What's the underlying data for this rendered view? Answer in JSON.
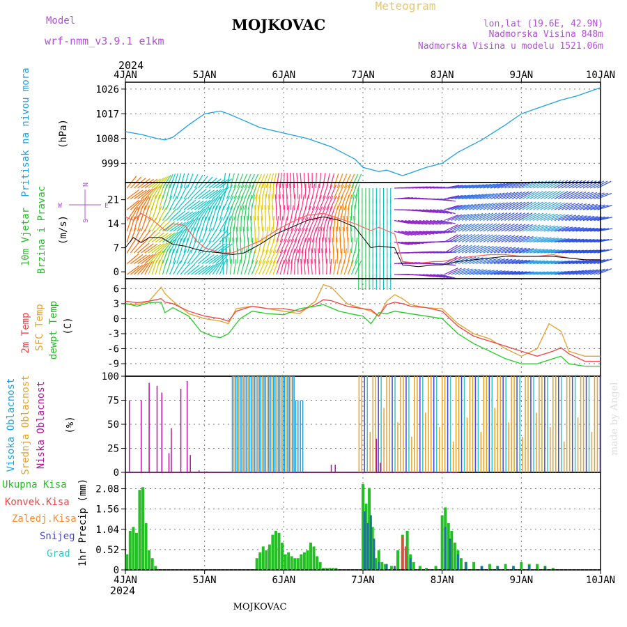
{
  "header": {
    "model_label": "Model",
    "model_value": "wrf-nmm_v3.9.1  e1km",
    "station": "MOJKOVAC",
    "product": "Meteogram",
    "lonlat": "lon,lat (19.6E, 42.9N)",
    "altitude": "Nadmorska Visina 848m",
    "model_altitude": "Nadmorska Visina u modelu 1521.06m",
    "year": "2024",
    "footer_station": "MOJKOVAC",
    "watermark": "made by Angel"
  },
  "colors": {
    "pressure": "#1ea0e6",
    "temp2m": "#ee4444",
    "sfc": "#e6a028",
    "dew": "#22cc22",
    "high_cloud": "#1ea0e6",
    "mid_cloud": "#e6a028",
    "low_cloud": "#b4149c",
    "total_precip": "#22c022",
    "conv_precip": "#ee4444",
    "frozen_precip": "#ff8c28",
    "snow": "#4646dc",
    "graupel": "#32c8c8",
    "model_text": "#b450dc",
    "meteogram_text": "#e6c870"
  },
  "chart_data": [
    {
      "type": "line",
      "panel": "pressure",
      "ylabel": "(hPa)",
      "side_labels": [
        "Pritisak na nivou mora"
      ],
      "x": [
        "4JAN",
        "5JAN",
        "6JAN",
        "7JAN",
        "8JAN",
        "9JAN",
        "10JAN"
      ],
      "yticks": [
        999,
        1008,
        1017,
        1026
      ],
      "ylim": [
        992,
        1028.5
      ],
      "series": [
        {
          "key": "slp",
          "x": [
            0,
            0.2,
            0.4,
            0.5,
            0.6,
            0.8,
            1.0,
            1.2,
            1.3,
            1.5,
            1.7,
            2.0,
            2.3,
            2.6,
            2.9,
            3.0,
            3.2,
            3.3,
            3.4,
            3.5,
            3.6,
            3.8,
            4.0,
            4.2,
            4.5,
            4.8,
            5.0,
            5.3,
            5.5,
            5.7,
            5.9,
            6.0
          ],
          "values": [
            1010.5,
            1009.5,
            1008,
            1007.5,
            1008.5,
            1013,
            1017,
            1018,
            1017,
            1014.5,
            1012,
            1010,
            1008,
            1005,
            1000.5,
            997.5,
            996,
            996.5,
            995.5,
            994.5,
            995.5,
            997.5,
            999,
            1003,
            1007.5,
            1013,
            1017,
            1020,
            1022,
            1023.5,
            1025.5,
            1026.5
          ]
        }
      ]
    },
    {
      "type": "line",
      "panel": "wind",
      "ylabel": "(m/s)",
      "side_labels": [
        "10m Vjetar",
        "Brzina i Pravac"
      ],
      "compass": {
        "n": "N",
        "s": "S",
        "e": "E",
        "w": "W"
      },
      "yticks": [
        0,
        7,
        14,
        21
      ],
      "ylim": [
        -2,
        26
      ],
      "series": [
        {
          "key": "mean_speed",
          "x": [
            0,
            0.1,
            0.2,
            0.3,
            0.45,
            0.6,
            0.75,
            0.9,
            1.0,
            1.2,
            1.35,
            1.5,
            1.7,
            1.9,
            2.1,
            2.3,
            2.5,
            2.7,
            2.9,
            3.0,
            3.1,
            3.2,
            3.4,
            3.5,
            3.7,
            3.9,
            4.0,
            4.2,
            4.4,
            4.6,
            4.8,
            5.0,
            5.2,
            5.4,
            5.6,
            5.8,
            6.0
          ],
          "values": [
            7,
            10,
            8.5,
            10,
            10,
            8,
            7.5,
            6.5,
            6,
            5.5,
            5,
            5.5,
            8,
            11,
            13,
            15,
            16,
            15,
            13,
            10,
            7,
            7.5,
            7,
            2,
            1.5,
            2,
            2,
            3,
            3.5,
            4,
            4.5,
            4.5,
            4.5,
            4.5,
            4,
            3.5,
            3.5
          ]
        },
        {
          "key": "gust",
          "x": [
            0,
            0.1,
            0.2,
            0.35,
            0.5,
            0.6,
            0.75,
            0.9,
            1.0,
            1.2,
            1.35,
            1.5,
            1.7,
            1.9,
            2.1,
            2.3,
            2.5,
            2.7,
            2.9,
            3.0,
            3.1,
            3.2,
            3.4,
            3.5,
            3.7,
            3.9,
            4.0,
            4.2,
            4.4,
            4.6,
            4.8,
            5.0,
            5.2,
            5.4,
            5.6,
            5.8,
            6.0
          ],
          "values": [
            16,
            15,
            17,
            15,
            12,
            14,
            13.5,
            9,
            7,
            5.5,
            5.5,
            7,
            9,
            12,
            14.5,
            16.5,
            17,
            15.5,
            14,
            13,
            12,
            13,
            11,
            3,
            2.5,
            3,
            3,
            4,
            4.5,
            5,
            5,
            4.5,
            4.5,
            5,
            4,
            3.5,
            3.5
          ]
        }
      ]
    },
    {
      "type": "line",
      "panel": "temperature",
      "ylabel": "(C)",
      "side_labels": [
        "2m Temp",
        "SFC Temp",
        "dewpt Temp"
      ],
      "yticks": [
        6,
        3,
        0,
        -3,
        -6,
        -9
      ],
      "ylim": [
        -11.5,
        8
      ],
      "series": [
        {
          "key": "t2m",
          "x": [
            0,
            0.15,
            0.3,
            0.45,
            0.5,
            0.6,
            0.8,
            1.0,
            1.2,
            1.3,
            1.4,
            1.6,
            1.8,
            2.0,
            2.2,
            2.4,
            2.5,
            2.6,
            2.8,
            3.0,
            3.1,
            3.2,
            3.3,
            3.4,
            3.5,
            3.6,
            3.8,
            4.0,
            4.2,
            4.4,
            4.6,
            4.8,
            5.0,
            5.2,
            5.4,
            5.5,
            5.6,
            5.8,
            6.0
          ],
          "values": [
            3.5,
            3.2,
            3.5,
            4,
            3.3,
            3,
            1.5,
            0.5,
            0,
            -0.5,
            1.5,
            2.5,
            2,
            2,
            1.5,
            2.8,
            3.8,
            3.6,
            2.5,
            2,
            1.8,
            0.5,
            2.8,
            3.3,
            3,
            2.5,
            2.2,
            1.5,
            -1.5,
            -3.5,
            -4.5,
            -5.5,
            -6.5,
            -7.5,
            -6.5,
            -5.8,
            -7,
            -8.5,
            -8.5
          ]
        },
        {
          "key": "sfc",
          "x": [
            0,
            0.15,
            0.3,
            0.45,
            0.5,
            0.6,
            0.8,
            1.0,
            1.2,
            1.3,
            1.4,
            1.6,
            1.8,
            2.0,
            2.2,
            2.4,
            2.5,
            2.6,
            2.8,
            3.0,
            3.1,
            3.2,
            3.3,
            3.4,
            3.5,
            3.6,
            3.8,
            4.0,
            4.2,
            4.4,
            4.6,
            4.8,
            5.0,
            5.2,
            5.35,
            5.5,
            5.6,
            5.8,
            6.0
          ],
          "values": [
            3,
            2.8,
            3.5,
            6.3,
            5,
            3.5,
            1,
            0,
            -0.5,
            -1,
            2,
            2.5,
            2,
            1.5,
            1,
            3.5,
            6.8,
            6.3,
            3,
            2,
            1.5,
            0.5,
            3.5,
            4.8,
            4,
            2.8,
            2.2,
            2,
            -1,
            -3,
            -4,
            -6,
            -7.5,
            -6,
            -1,
            -2.5,
            -6.5,
            -7.5,
            -7.5
          ]
        },
        {
          "key": "dew",
          "x": [
            0,
            0.15,
            0.3,
            0.45,
            0.5,
            0.6,
            0.8,
            0.95,
            1.1,
            1.2,
            1.3,
            1.45,
            1.6,
            1.8,
            2.0,
            2.2,
            2.4,
            2.5,
            2.7,
            2.9,
            3.0,
            3.1,
            3.2,
            3.3,
            3.4,
            3.6,
            3.8,
            4.0,
            4.2,
            4.4,
            4.6,
            4.8,
            5.0,
            5.2,
            5.4,
            5.5,
            5.6,
            5.8,
            6.0
          ],
          "values": [
            3,
            2.5,
            3.2,
            3.3,
            1.2,
            2.2,
            0.5,
            -2.5,
            -3.5,
            -3.8,
            -3,
            0,
            1.5,
            1,
            0.8,
            2,
            2.5,
            2.8,
            1.5,
            0.8,
            0.5,
            -1,
            1.2,
            1,
            1.5,
            1,
            0.5,
            0,
            -3,
            -5,
            -6.5,
            -8,
            -9,
            -9,
            -8,
            -7.5,
            -9,
            -9.5,
            -9.5
          ]
        }
      ]
    },
    {
      "type": "bar",
      "panel": "cloud",
      "ylabel": "(%)",
      "side_labels": [
        "Visoka Oblacnost",
        "Srednja Oblacnost",
        "Niska Oblacnost"
      ],
      "yticks": [
        0,
        25,
        50,
        75,
        100
      ],
      "ylim": [
        0,
        100
      ],
      "series": [
        {
          "key": "low",
          "x": [
            0.05,
            0.2,
            0.3,
            0.4,
            0.46,
            0.55,
            0.58,
            0.7,
            0.78,
            0.82,
            0.93,
            1.0,
            1.03,
            2.6,
            2.65,
            3.17,
            3.22
          ],
          "values": [
            75,
            75,
            93,
            90,
            83,
            20,
            46,
            87,
            95,
            18,
            2,
            1,
            1,
            8,
            8,
            35,
            10
          ]
        }
      ],
      "blocks": [
        {
          "key": "high_block",
          "x0": 1.35,
          "x1": 2.15,
          "value": 100
        },
        {
          "key": "high_tail",
          "x0": 2.15,
          "x1": 2.25,
          "value": 75
        },
        {
          "key": "mid_mix",
          "x0": 2.95,
          "x1": 6.0,
          "value": 100
        }
      ]
    },
    {
      "type": "bar",
      "panel": "precip",
      "ylabel": "1hr Precip (mm)",
      "side_labels": [
        "Ukupna Kisa",
        "Konvek.Kisa",
        "Zaledj.Kisa",
        "Snijeg",
        "Grad"
      ],
      "yticks": [
        0,
        0.52,
        1.04,
        1.56,
        2.08
      ],
      "ylim": [
        0,
        2.5
      ],
      "xlabel_bottom": [
        "4JAN",
        "5JAN",
        "6JAN",
        "7JAN",
        "8JAN",
        "9JAN",
        "10JAN"
      ],
      "series": [
        {
          "key": "total",
          "x": [
            0.02,
            0.06,
            0.1,
            0.14,
            0.18,
            0.22,
            0.26,
            0.3,
            0.34,
            0.38,
            1.66,
            1.7,
            1.74,
            1.78,
            1.82,
            1.86,
            1.9,
            1.94,
            1.98,
            2.02,
            2.06,
            2.1,
            2.14,
            2.18,
            2.22,
            2.26,
            2.3,
            2.34,
            2.38,
            2.42,
            2.46,
            2.5,
            2.54,
            2.58,
            2.62,
            2.66,
            3.0,
            3.04,
            3.08,
            3.12,
            3.16,
            3.2,
            3.24,
            3.28,
            3.36,
            3.44,
            3.5,
            3.56,
            3.6,
            3.64,
            3.72,
            3.8,
            3.92,
            4.0,
            4.04,
            4.08,
            4.12,
            4.16,
            4.2,
            4.24,
            4.3,
            4.4,
            4.5,
            4.6,
            4.7,
            4.8,
            4.9,
            5.0,
            5.1,
            5.2,
            5.3,
            5.4
          ],
          "values": [
            0.4,
            1.0,
            1.1,
            0.95,
            2.05,
            2.12,
            1.2,
            0.5,
            0.3,
            0.1,
            0.3,
            0.45,
            0.6,
            0.5,
            0.65,
            0.9,
            1.0,
            0.95,
            0.7,
            0.4,
            0.45,
            0.35,
            0.3,
            0.3,
            0.4,
            0.45,
            0.5,
            0.7,
            0.6,
            0.35,
            0.2,
            0.05,
            0.05,
            0.05,
            0.05,
            0.05,
            2.2,
            1.7,
            2.1,
            1.1,
            0.3,
            0.5,
            0.2,
            0.15,
            0.1,
            0.5,
            0.9,
            1.0,
            0.4,
            0.2,
            0.1,
            0.05,
            0.1,
            1.4,
            1.6,
            1.2,
            1.0,
            0.7,
            0.5,
            0.3,
            0.2,
            0.2,
            0.1,
            0.15,
            0.1,
            0.15,
            0.1,
            0.2,
            0.15,
            0.15,
            0.1,
            0.05
          ]
        },
        {
          "key": "snow",
          "x": [
            3.02,
            3.06,
            3.1,
            3.14,
            3.2,
            3.3,
            3.4,
            3.5,
            3.6,
            4.04,
            4.1,
            4.2,
            4.3,
            4.5,
            4.7,
            4.9,
            5.1,
            5.3
          ],
          "values": [
            1.5,
            1.2,
            1.4,
            0.8,
            0.2,
            0.15,
            0.1,
            0.6,
            0.3,
            1.1,
            0.8,
            0.4,
            0.2,
            0.1,
            0.1,
            0.1,
            0.12,
            0.1
          ]
        },
        {
          "key": "conv",
          "x": [
            3.5,
            3.54
          ],
          "values": [
            0.85,
            0.6
          ]
        }
      ]
    }
  ]
}
